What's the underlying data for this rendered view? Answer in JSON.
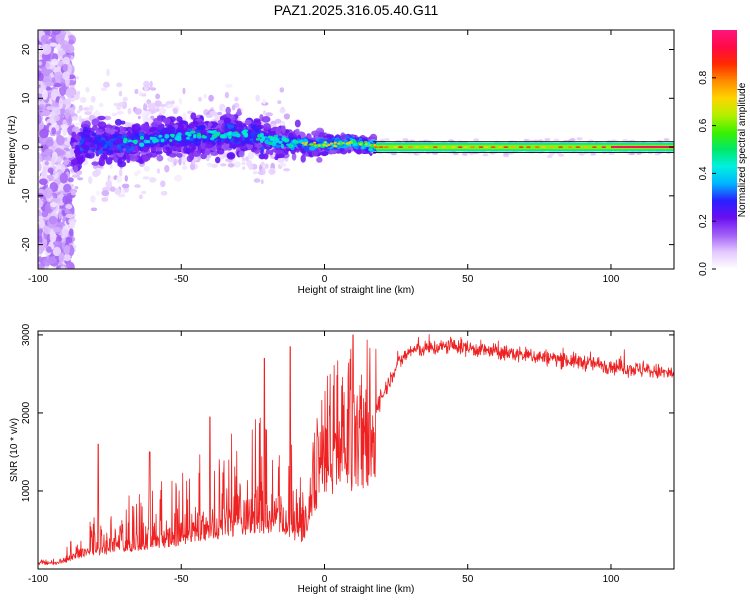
{
  "title": "PAZ1.2025.316.05.40.G11",
  "chart_data": [
    {
      "type": "heatmap",
      "name": "spectrogram",
      "xlabel": "Height of straight line (km)",
      "ylabel": "Frequency (Hz)",
      "xlim": [
        -100,
        122
      ],
      "ylim": [
        -25,
        24
      ],
      "xticks": [
        -100,
        -50,
        0,
        50,
        100
      ],
      "yticks": [
        -20,
        -10,
        0,
        10,
        20
      ],
      "colorbar": {
        "label": "Normalized spectral amplitude",
        "range": [
          0.0,
          1.0
        ],
        "ticks": [
          0.0,
          0.2,
          0.4,
          0.6,
          0.8
        ],
        "tick_labels": [
          "0.0",
          "0.2",
          "0.4",
          "0.6",
          "0.8"
        ],
        "colormap": [
          "#ffffff",
          "#e3c8ff",
          "#a15ff5",
          "#6a0ff2",
          "#2a20ff",
          "#00b4ff",
          "#00f0e0",
          "#00e86a",
          "#3cf000",
          "#b4f000",
          "#ffd400",
          "#ff8c00",
          "#ff2a00",
          "#ff0a46",
          "#ff157d"
        ]
      },
      "ridge": [
        {
          "x": -85,
          "y": 1.5
        },
        {
          "x": -75,
          "y": 0.5
        },
        {
          "x": -65,
          "y": 1.2
        },
        {
          "x": -55,
          "y": 2.0
        },
        {
          "x": -45,
          "y": 2.4
        },
        {
          "x": -35,
          "y": 2.6
        },
        {
          "x": -25,
          "y": 2.2
        },
        {
          "x": -15,
          "y": 1.2
        },
        {
          "x": -5,
          "y": 0.6
        },
        {
          "x": 5,
          "y": 0.6
        },
        {
          "x": 10,
          "y": 1.0
        },
        {
          "x": 18,
          "y": 0.0
        },
        {
          "x": 122,
          "y": 0.0
        }
      ]
    },
    {
      "type": "line",
      "name": "snr",
      "xlabel": "Height of straight line (km)",
      "ylabel": "SNR (10 * v/v)",
      "xlim": [
        -100,
        122
      ],
      "ylim": [
        0,
        3050
      ],
      "xticks": [
        -100,
        -50,
        0,
        50,
        100
      ],
      "yticks": [
        1000,
        2000,
        3000
      ],
      "color": "#ee2222",
      "envelope": [
        {
          "x": -100,
          "y": 100
        },
        {
          "x": -93,
          "y": 100
        },
        {
          "x": -85,
          "y": 250
        },
        {
          "x": -75,
          "y": 350
        },
        {
          "x": -65,
          "y": 420
        },
        {
          "x": -55,
          "y": 500
        },
        {
          "x": -45,
          "y": 600
        },
        {
          "x": -35,
          "y": 700
        },
        {
          "x": -25,
          "y": 800
        },
        {
          "x": -18,
          "y": 850
        },
        {
          "x": -12,
          "y": 700
        },
        {
          "x": -8,
          "y": 600
        },
        {
          "x": -5,
          "y": 900
        },
        {
          "x": 0,
          "y": 1600
        },
        {
          "x": 5,
          "y": 1750
        },
        {
          "x": 15,
          "y": 1850
        },
        {
          "x": 20,
          "y": 2200
        },
        {
          "x": 25,
          "y": 2600
        },
        {
          "x": 30,
          "y": 2800
        },
        {
          "x": 45,
          "y": 2860
        },
        {
          "x": 60,
          "y": 2780
        },
        {
          "x": 80,
          "y": 2700
        },
        {
          "x": 100,
          "y": 2600
        },
        {
          "x": 122,
          "y": 2500
        }
      ],
      "notable_peaks": [
        {
          "x": -79,
          "y": 1600
        },
        {
          "x": -61,
          "y": 1500
        },
        {
          "x": -40,
          "y": 1950
        },
        {
          "x": -21,
          "y": 2700
        },
        {
          "x": -12,
          "y": 2850
        },
        {
          "x": 10,
          "y": 3000
        }
      ]
    }
  ]
}
